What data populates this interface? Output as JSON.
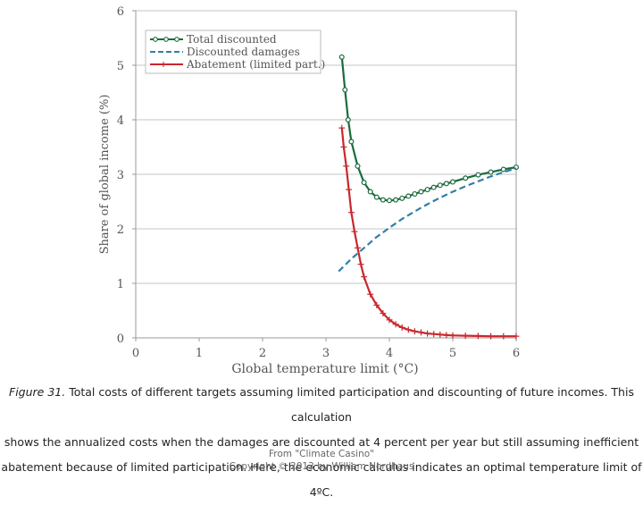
{
  "chart_data": {
    "type": "line",
    "xlabel": "Global temperature limit (°C)",
    "ylabel": "Share of global income (%)",
    "xlim": [
      0,
      6
    ],
    "ylim": [
      0,
      6
    ],
    "x_ticks": [
      "0",
      "1",
      "2",
      "3",
      "4",
      "5",
      "6"
    ],
    "y_ticks": [
      "0",
      "1",
      "2",
      "3",
      "4",
      "5",
      "6"
    ],
    "grid": "horizontal",
    "legend_position": "top-left",
    "series": [
      {
        "name": "Total discounted",
        "color": "#1b6b3c",
        "marker": "circle",
        "x": [
          3.25,
          3.3,
          3.35,
          3.4,
          3.5,
          3.6,
          3.7,
          3.8,
          3.9,
          4.0,
          4.1,
          4.2,
          4.3,
          4.4,
          4.5,
          4.6,
          4.7,
          4.8,
          4.9,
          5.0,
          5.2,
          5.4,
          5.6,
          5.8,
          6.0
        ],
        "y": [
          5.15,
          4.55,
          4.0,
          3.6,
          3.15,
          2.85,
          2.68,
          2.58,
          2.53,
          2.52,
          2.53,
          2.56,
          2.6,
          2.64,
          2.68,
          2.72,
          2.76,
          2.8,
          2.83,
          2.86,
          2.93,
          2.99,
          3.04,
          3.09,
          3.13
        ]
      },
      {
        "name": "Discounted damages",
        "color": "#2f7fa8",
        "dash": "dashed",
        "x": [
          3.2,
          3.4,
          3.6,
          3.8,
          4.0,
          4.2,
          4.4,
          4.6,
          4.8,
          5.0,
          5.2,
          5.4,
          5.6,
          5.8,
          6.0
        ],
        "y": [
          1.22,
          1.45,
          1.65,
          1.85,
          2.02,
          2.18,
          2.32,
          2.45,
          2.57,
          2.68,
          2.78,
          2.87,
          2.96,
          3.04,
          3.11
        ]
      },
      {
        "name": "Abatement (limited part.)",
        "color": "#c8282d",
        "marker": "plus",
        "x": [
          3.25,
          3.28,
          3.32,
          3.36,
          3.4,
          3.45,
          3.5,
          3.55,
          3.6,
          3.7,
          3.8,
          3.9,
          4.0,
          4.1,
          4.2,
          4.3,
          4.4,
          4.5,
          4.6,
          4.7,
          4.8,
          4.9,
          5.0,
          5.2,
          5.4,
          5.6,
          5.8,
          6.0
        ],
        "y": [
          3.85,
          3.5,
          3.15,
          2.72,
          2.3,
          1.95,
          1.65,
          1.35,
          1.12,
          0.8,
          0.6,
          0.45,
          0.33,
          0.25,
          0.19,
          0.15,
          0.12,
          0.1,
          0.08,
          0.07,
          0.06,
          0.05,
          0.045,
          0.04,
          0.035,
          0.03,
          0.03,
          0.03
        ]
      }
    ]
  },
  "caption": {
    "figure_label": "Figure 31.",
    "line1": " Total costs of different targets assuming limited participation and discounting of future incomes. This calculation",
    "line2": "shows the annualized costs when the damages are discounted at 4 percent per year but still assuming inefficient",
    "line3": "abatement because of limited participation. Here, the economic calculus indicates an optimal temperature limit of 4ºC."
  },
  "credit": {
    "line1": "From \"Climate Casino\"",
    "line2": "Copyright © 2013 by William Nordhaus"
  }
}
